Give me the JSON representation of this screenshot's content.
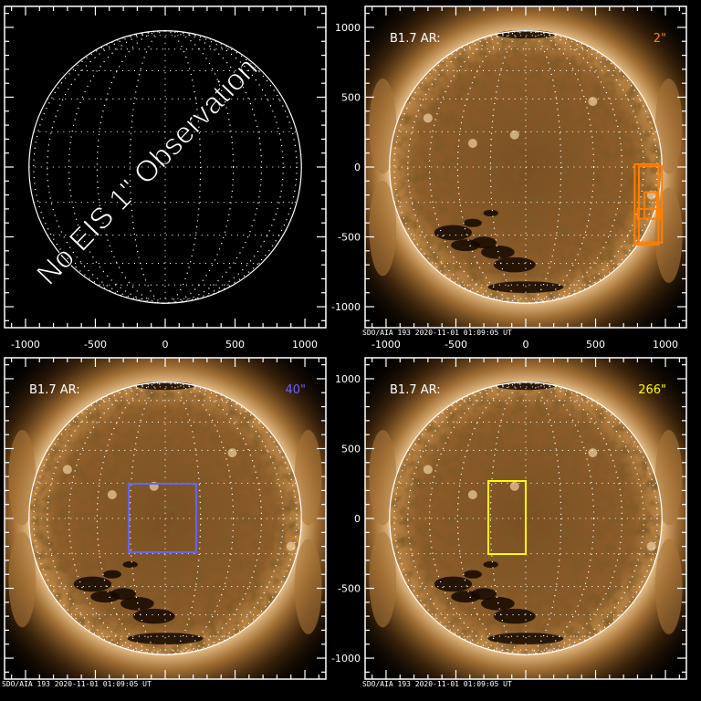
{
  "chart_data": [
    {
      "type": "image",
      "title": "",
      "overlay_text": "No EIS 1\" Observation",
      "xlim": [
        -1150,
        1150
      ],
      "ylim": [
        -1150,
        1150
      ],
      "xticks": [
        -1000,
        -500,
        0,
        500,
        1000
      ],
      "show_xlabels": true,
      "show_ylabels": false,
      "has_image": false,
      "label": "",
      "fov_label": "",
      "fov_color": "",
      "fov_boxes": [],
      "footer": ""
    },
    {
      "type": "image",
      "title": "",
      "xlim": [
        -1150,
        1150
      ],
      "ylim": [
        -1150,
        1150
      ],
      "xticks": [
        -1000,
        -500,
        0,
        500,
        1000
      ],
      "yticks": [
        -1000,
        -500,
        0,
        500,
        1000
      ],
      "show_xlabels": true,
      "show_ylabels": true,
      "has_image": true,
      "label": "B1.7 AR:",
      "fov_label": "2\"",
      "fov_color": "#ff7f00",
      "fov_boxes": [
        [
          780,
          20,
          950,
          -555
        ],
        [
          810,
          5,
          975,
          -540
        ],
        [
          850,
          -180,
          940,
          -370
        ],
        [
          800,
          -300,
          960,
          -370
        ]
      ],
      "footer": "SDO/AIA 193   2020-11-01 01:09:05 UT"
    },
    {
      "type": "image",
      "title": "",
      "xlim": [
        -1150,
        1150
      ],
      "ylim": [
        -1150,
        1150
      ],
      "xticks": [
        -1000,
        -500,
        0,
        500,
        1000
      ],
      "show_xlabels": false,
      "show_ylabels": false,
      "has_image": true,
      "label": "B1.7 AR:",
      "fov_label": "40\"",
      "fov_color": "#6464ff",
      "fov_boxes": [
        [
          -261,
          248,
          222,
          -242
        ]
      ],
      "footer": "SDO/AIA 193   2020-11-01 01:09:05 UT"
    },
    {
      "type": "image",
      "title": "",
      "xlim": [
        -1150,
        1150
      ],
      "ylim": [
        -1150,
        1150
      ],
      "xticks": [
        -1000,
        -500,
        0,
        500,
        1000
      ],
      "yticks": [
        -1000,
        -500,
        0,
        500,
        1000
      ],
      "show_xlabels": false,
      "show_ylabels": true,
      "has_image": true,
      "label": "B1.7 AR:",
      "fov_label": "266\"",
      "fov_color": "#ffff00",
      "fov_boxes": [
        [
          -268,
          268,
          0,
          -255
        ]
      ],
      "footer": "SDO/AIA 193   2020-11-01 01:09:05 UT"
    }
  ],
  "solar_radius_arcsec": 975
}
